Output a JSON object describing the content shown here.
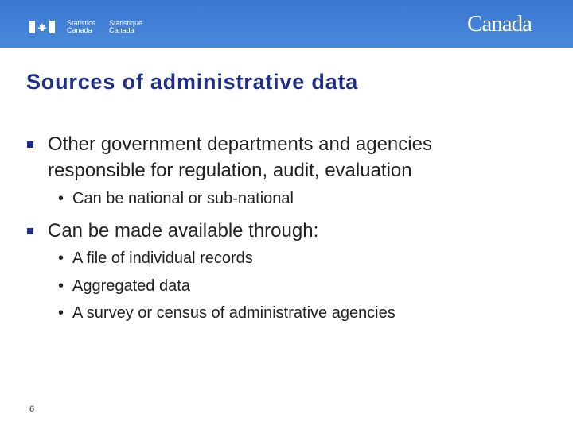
{
  "header": {
    "agency_en": [
      "Statistics",
      "Canada"
    ],
    "agency_fr": [
      "Statistique",
      "Canada"
    ],
    "wordmark": "Canada",
    "color": "#3a79d4"
  },
  "title": "Sources of administrative data",
  "bullets": [
    {
      "text": "Other government departments and agencies responsible for regulation, audit, evaluation",
      "sub": [
        "Can be national or sub-national"
      ]
    },
    {
      "text": "Can be made available through:",
      "sub": [
        "A file of individual records",
        "Aggregated data",
        "A survey or census of administrative agencies"
      ]
    }
  ],
  "page_number": "6"
}
